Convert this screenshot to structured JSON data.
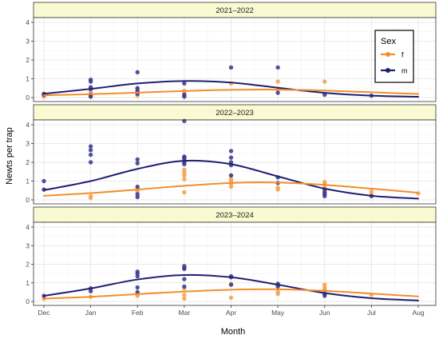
{
  "chart_data": {
    "type": "scatter",
    "xlabel": "Month",
    "ylabel": "Newts per trap",
    "x_ticks": [
      "Dec",
      "Jan",
      "Feb",
      "Mar",
      "Apr",
      "May",
      "Jun",
      "Jul",
      "Aug"
    ],
    "ylim": [
      0,
      4
    ],
    "y_ticks": [
      0,
      1,
      2,
      3,
      4
    ],
    "grid": true,
    "legend": {
      "title": "Sex",
      "placement": "top-right",
      "entries": [
        {
          "key": "f",
          "label": "f",
          "color": "#f28e2b"
        },
        {
          "key": "m",
          "label": "m",
          "color": "#1f1f75"
        }
      ]
    },
    "colors": {
      "f_point": "#f7a04a",
      "m_point": "#3b3b8f",
      "f_line": "#f28e2b",
      "m_line": "#1f1f75",
      "strip_fill": "#fafad2"
    },
    "panels": [
      {
        "title": "2021–2022",
        "points": {
          "f": [
            [
              0,
              0.1
            ],
            [
              0,
              0.05
            ],
            [
              1,
              0.1
            ],
            [
              1,
              0.3
            ],
            [
              1,
              0.05
            ],
            [
              2,
              0.1
            ],
            [
              2,
              0.3
            ],
            [
              2,
              0.45
            ],
            [
              3,
              0.1
            ],
            [
              3,
              0.2
            ],
            [
              3,
              0.35
            ],
            [
              4,
              0.75
            ],
            [
              5,
              0.85
            ],
            [
              5,
              0.4
            ],
            [
              6,
              0.85
            ]
          ],
          "m": [
            [
              0,
              0.2
            ],
            [
              0,
              0.15
            ],
            [
              1,
              0.95
            ],
            [
              1,
              0.85
            ],
            [
              1,
              0.55
            ],
            [
              1,
              0.45
            ],
            [
              1,
              0.05
            ],
            [
              1,
              0.15
            ],
            [
              2,
              1.35
            ],
            [
              2,
              0.5
            ],
            [
              2,
              0.35
            ],
            [
              2,
              0.2
            ],
            [
              3,
              0.75
            ],
            [
              3,
              0.15
            ],
            [
              3,
              0.05
            ],
            [
              4,
              1.6
            ],
            [
              5,
              1.6
            ],
            [
              5,
              0.25
            ],
            [
              6,
              0.15
            ],
            [
              7,
              0.1
            ]
          ]
        },
        "curves": {
          "f": [
            [
              0,
              0.12
            ],
            [
              1,
              0.18
            ],
            [
              2,
              0.26
            ],
            [
              3,
              0.35
            ],
            [
              4,
              0.41
            ],
            [
              5,
              0.42
            ],
            [
              6,
              0.37
            ],
            [
              7,
              0.28
            ],
            [
              8,
              0.19
            ]
          ],
          "m": [
            [
              0,
              0.2
            ],
            [
              1,
              0.46
            ],
            [
              2,
              0.75
            ],
            [
              3,
              0.88
            ],
            [
              4,
              0.8
            ],
            [
              5,
              0.52
            ],
            [
              6,
              0.25
            ],
            [
              7,
              0.1
            ],
            [
              8,
              0.04
            ]
          ]
        }
      },
      {
        "title": "2022–2023",
        "points": {
          "f": [
            [
              1,
              0.2
            ],
            [
              1,
              0.1
            ],
            [
              2,
              0.45
            ],
            [
              2,
              0.6
            ],
            [
              3,
              0.4
            ],
            [
              3,
              1.1
            ],
            [
              3,
              1.3
            ],
            [
              3,
              1.45
            ],
            [
              3,
              1.6
            ],
            [
              4,
              0.7
            ],
            [
              4,
              0.85
            ],
            [
              4,
              1.0
            ],
            [
              4,
              1.1
            ],
            [
              4,
              1.3
            ],
            [
              5,
              0.55
            ],
            [
              5,
              0.65
            ],
            [
              6,
              0.75
            ],
            [
              6,
              0.85
            ],
            [
              6,
              0.95
            ],
            [
              6,
              0.5
            ],
            [
              6,
              0.4
            ],
            [
              7,
              0.45
            ],
            [
              7,
              0.3
            ],
            [
              8,
              0.35
            ]
          ],
          "m": [
            [
              0,
              1.0
            ],
            [
              0,
              0.55
            ],
            [
              1,
              2.85
            ],
            [
              1,
              2.65
            ],
            [
              1,
              2.4
            ],
            [
              1,
              2.0
            ],
            [
              2,
              2.15
            ],
            [
              2,
              1.95
            ],
            [
              2,
              0.7
            ],
            [
              2,
              0.3
            ],
            [
              2,
              0.15
            ],
            [
              3,
              4.2
            ],
            [
              3,
              2.3
            ],
            [
              3,
              2.25
            ],
            [
              3,
              2.2
            ],
            [
              3,
              2.0
            ],
            [
              3,
              1.9
            ],
            [
              4,
              2.6
            ],
            [
              4,
              2.25
            ],
            [
              4,
              2.0
            ],
            [
              4,
              1.85
            ],
            [
              4,
              1.3
            ],
            [
              5,
              1.2
            ],
            [
              5,
              0.9
            ],
            [
              6,
              0.55
            ],
            [
              6,
              0.4
            ],
            [
              6,
              0.3
            ],
            [
              6,
              0.2
            ],
            [
              7,
              0.2
            ]
          ]
        },
        "curves": {
          "f": [
            [
              0,
              0.22
            ],
            [
              1,
              0.36
            ],
            [
              2,
              0.55
            ],
            [
              3,
              0.75
            ],
            [
              4,
              0.9
            ],
            [
              5,
              0.92
            ],
            [
              6,
              0.8
            ],
            [
              7,
              0.6
            ],
            [
              8,
              0.38
            ]
          ],
          "m": [
            [
              0,
              0.52
            ],
            [
              1,
              1.0
            ],
            [
              2,
              1.65
            ],
            [
              3,
              2.08
            ],
            [
              4,
              1.9
            ],
            [
              5,
              1.25
            ],
            [
              6,
              0.6
            ],
            [
              7,
              0.22
            ],
            [
              8,
              0.07
            ]
          ]
        }
      },
      {
        "title": "2023–2024",
        "points": {
          "f": [
            [
              0,
              0.15
            ],
            [
              1,
              0.25
            ],
            [
              2,
              0.3
            ],
            [
              2,
              0.4
            ],
            [
              3,
              0.15
            ],
            [
              3,
              0.35
            ],
            [
              3,
              0.7
            ],
            [
              4,
              0.95
            ],
            [
              4,
              0.2
            ],
            [
              5,
              0.9
            ],
            [
              5,
              0.5
            ],
            [
              5,
              0.4
            ],
            [
              6,
              0.9
            ],
            [
              6,
              0.75
            ],
            [
              6,
              0.65
            ],
            [
              6,
              0.55
            ],
            [
              7,
              0.35
            ]
          ],
          "m": [
            [
              0,
              0.3
            ],
            [
              1,
              0.7
            ],
            [
              1,
              0.55
            ],
            [
              2,
              1.6
            ],
            [
              2,
              1.5
            ],
            [
              2,
              1.35
            ],
            [
              2,
              0.75
            ],
            [
              2,
              0.5
            ],
            [
              3,
              1.9
            ],
            [
              3,
              1.8
            ],
            [
              3,
              1.75
            ],
            [
              3,
              1.2
            ],
            [
              3,
              0.8
            ],
            [
              4,
              1.35
            ],
            [
              4,
              1.3
            ],
            [
              4,
              0.9
            ],
            [
              5,
              0.95
            ],
            [
              5,
              0.8
            ],
            [
              6,
              0.4
            ],
            [
              6,
              0.3
            ]
          ]
        },
        "curves": {
          "f": [
            [
              0,
              0.15
            ],
            [
              1,
              0.25
            ],
            [
              2,
              0.39
            ],
            [
              3,
              0.53
            ],
            [
              4,
              0.63
            ],
            [
              5,
              0.65
            ],
            [
              6,
              0.57
            ],
            [
              7,
              0.42
            ],
            [
              8,
              0.27
            ]
          ],
          "m": [
            [
              0,
              0.3
            ],
            [
              1,
              0.7
            ],
            [
              2,
              1.18
            ],
            [
              3,
              1.42
            ],
            [
              4,
              1.3
            ],
            [
              5,
              0.9
            ],
            [
              6,
              0.45
            ],
            [
              7,
              0.17
            ],
            [
              8,
              0.05
            ]
          ]
        }
      }
    ]
  }
}
